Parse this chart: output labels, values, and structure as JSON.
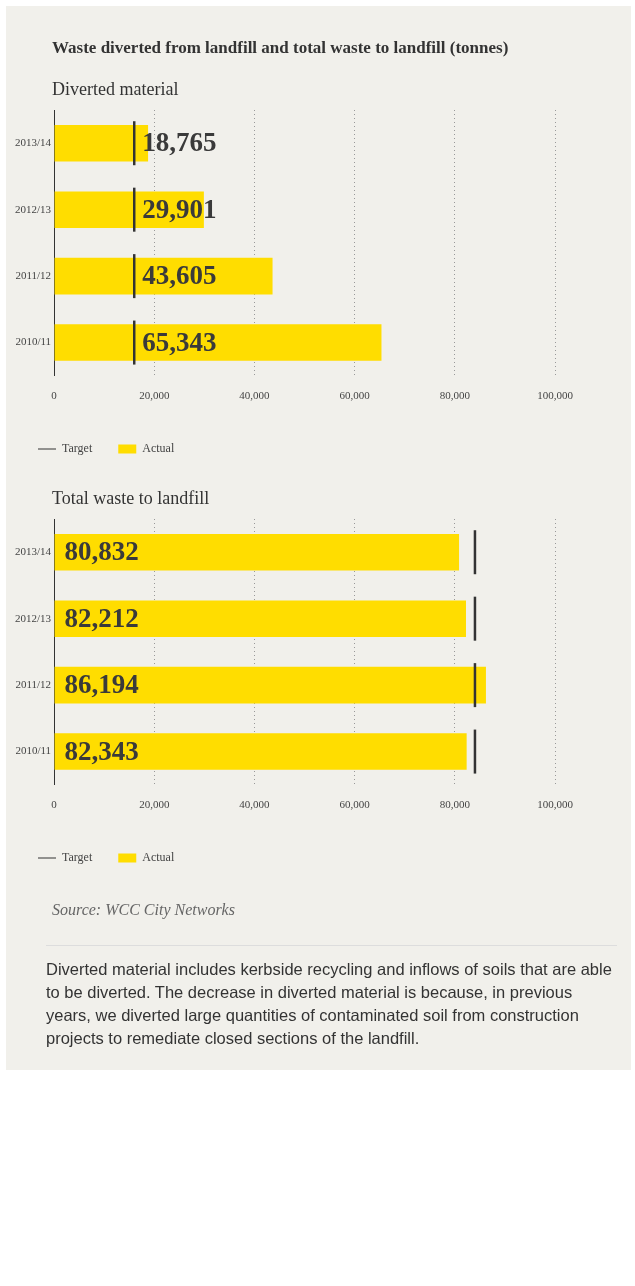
{
  "chart_data": [
    {
      "type": "bar",
      "orientation": "horizontal",
      "title": "Waste diverted from landfill and total waste to landfill (tonnes)",
      "subtitle": "Diverted material",
      "categories": [
        "2013/14",
        "2012/13",
        "2011/12",
        "2010/11"
      ],
      "series": [
        {
          "name": "Actual",
          "color": "#ffdd00",
          "values": [
            18765,
            29901,
            43605,
            65343
          ],
          "value_labels": [
            "18,765",
            "29,901",
            "43,605",
            "65,343"
          ]
        }
      ],
      "ref_lines": [
        {
          "axis": "x",
          "value": 16000,
          "label": "Target",
          "color": "#333333"
        }
      ],
      "xlim": [
        0,
        100000
      ],
      "xticks": [
        {
          "value": 0,
          "label": "0"
        },
        {
          "value": 20000,
          "label": "20,000"
        },
        {
          "value": 40000,
          "label": "40,000"
        },
        {
          "value": 60000,
          "label": "60,000"
        },
        {
          "value": 80000,
          "label": "80,000"
        },
        {
          "value": 100000,
          "label": "100,000"
        }
      ],
      "grid": "x",
      "legend": "bottom"
    },
    {
      "type": "bar",
      "orientation": "horizontal",
      "title": "Total waste to landfill",
      "categories": [
        "2013/14",
        "2012/13",
        "2011/12",
        "2010/11"
      ],
      "series": [
        {
          "name": "Actual",
          "color": "#ffdd00",
          "values": [
            80832,
            82212,
            86194,
            82343
          ],
          "value_labels": [
            "80,832",
            "82,212",
            "86,194",
            "82,343"
          ]
        }
      ],
      "ref_lines": [
        {
          "axis": "x",
          "value": 84000,
          "label": "Target",
          "color": "#333333"
        }
      ],
      "xlim": [
        0,
        100000
      ],
      "xticks": [
        {
          "value": 0,
          "label": "0"
        },
        {
          "value": 20000,
          "label": "20,000"
        },
        {
          "value": 40000,
          "label": "40,000"
        },
        {
          "value": 60000,
          "label": "60,000"
        },
        {
          "value": 80000,
          "label": "80,000"
        },
        {
          "value": 100000,
          "label": "100,000"
        }
      ],
      "grid": "x",
      "legend": "bottom",
      "annotations": [
        "Source: WCC City Networks",
        "Diverted material includes kerbside recycling and inflows of soils that are able to be diverted. The decrease in diverted material is because, in previous years, we diverted large quantities of contaminated soil from construction projects to remediate closed sections of the landfill."
      ]
    }
  ]
}
